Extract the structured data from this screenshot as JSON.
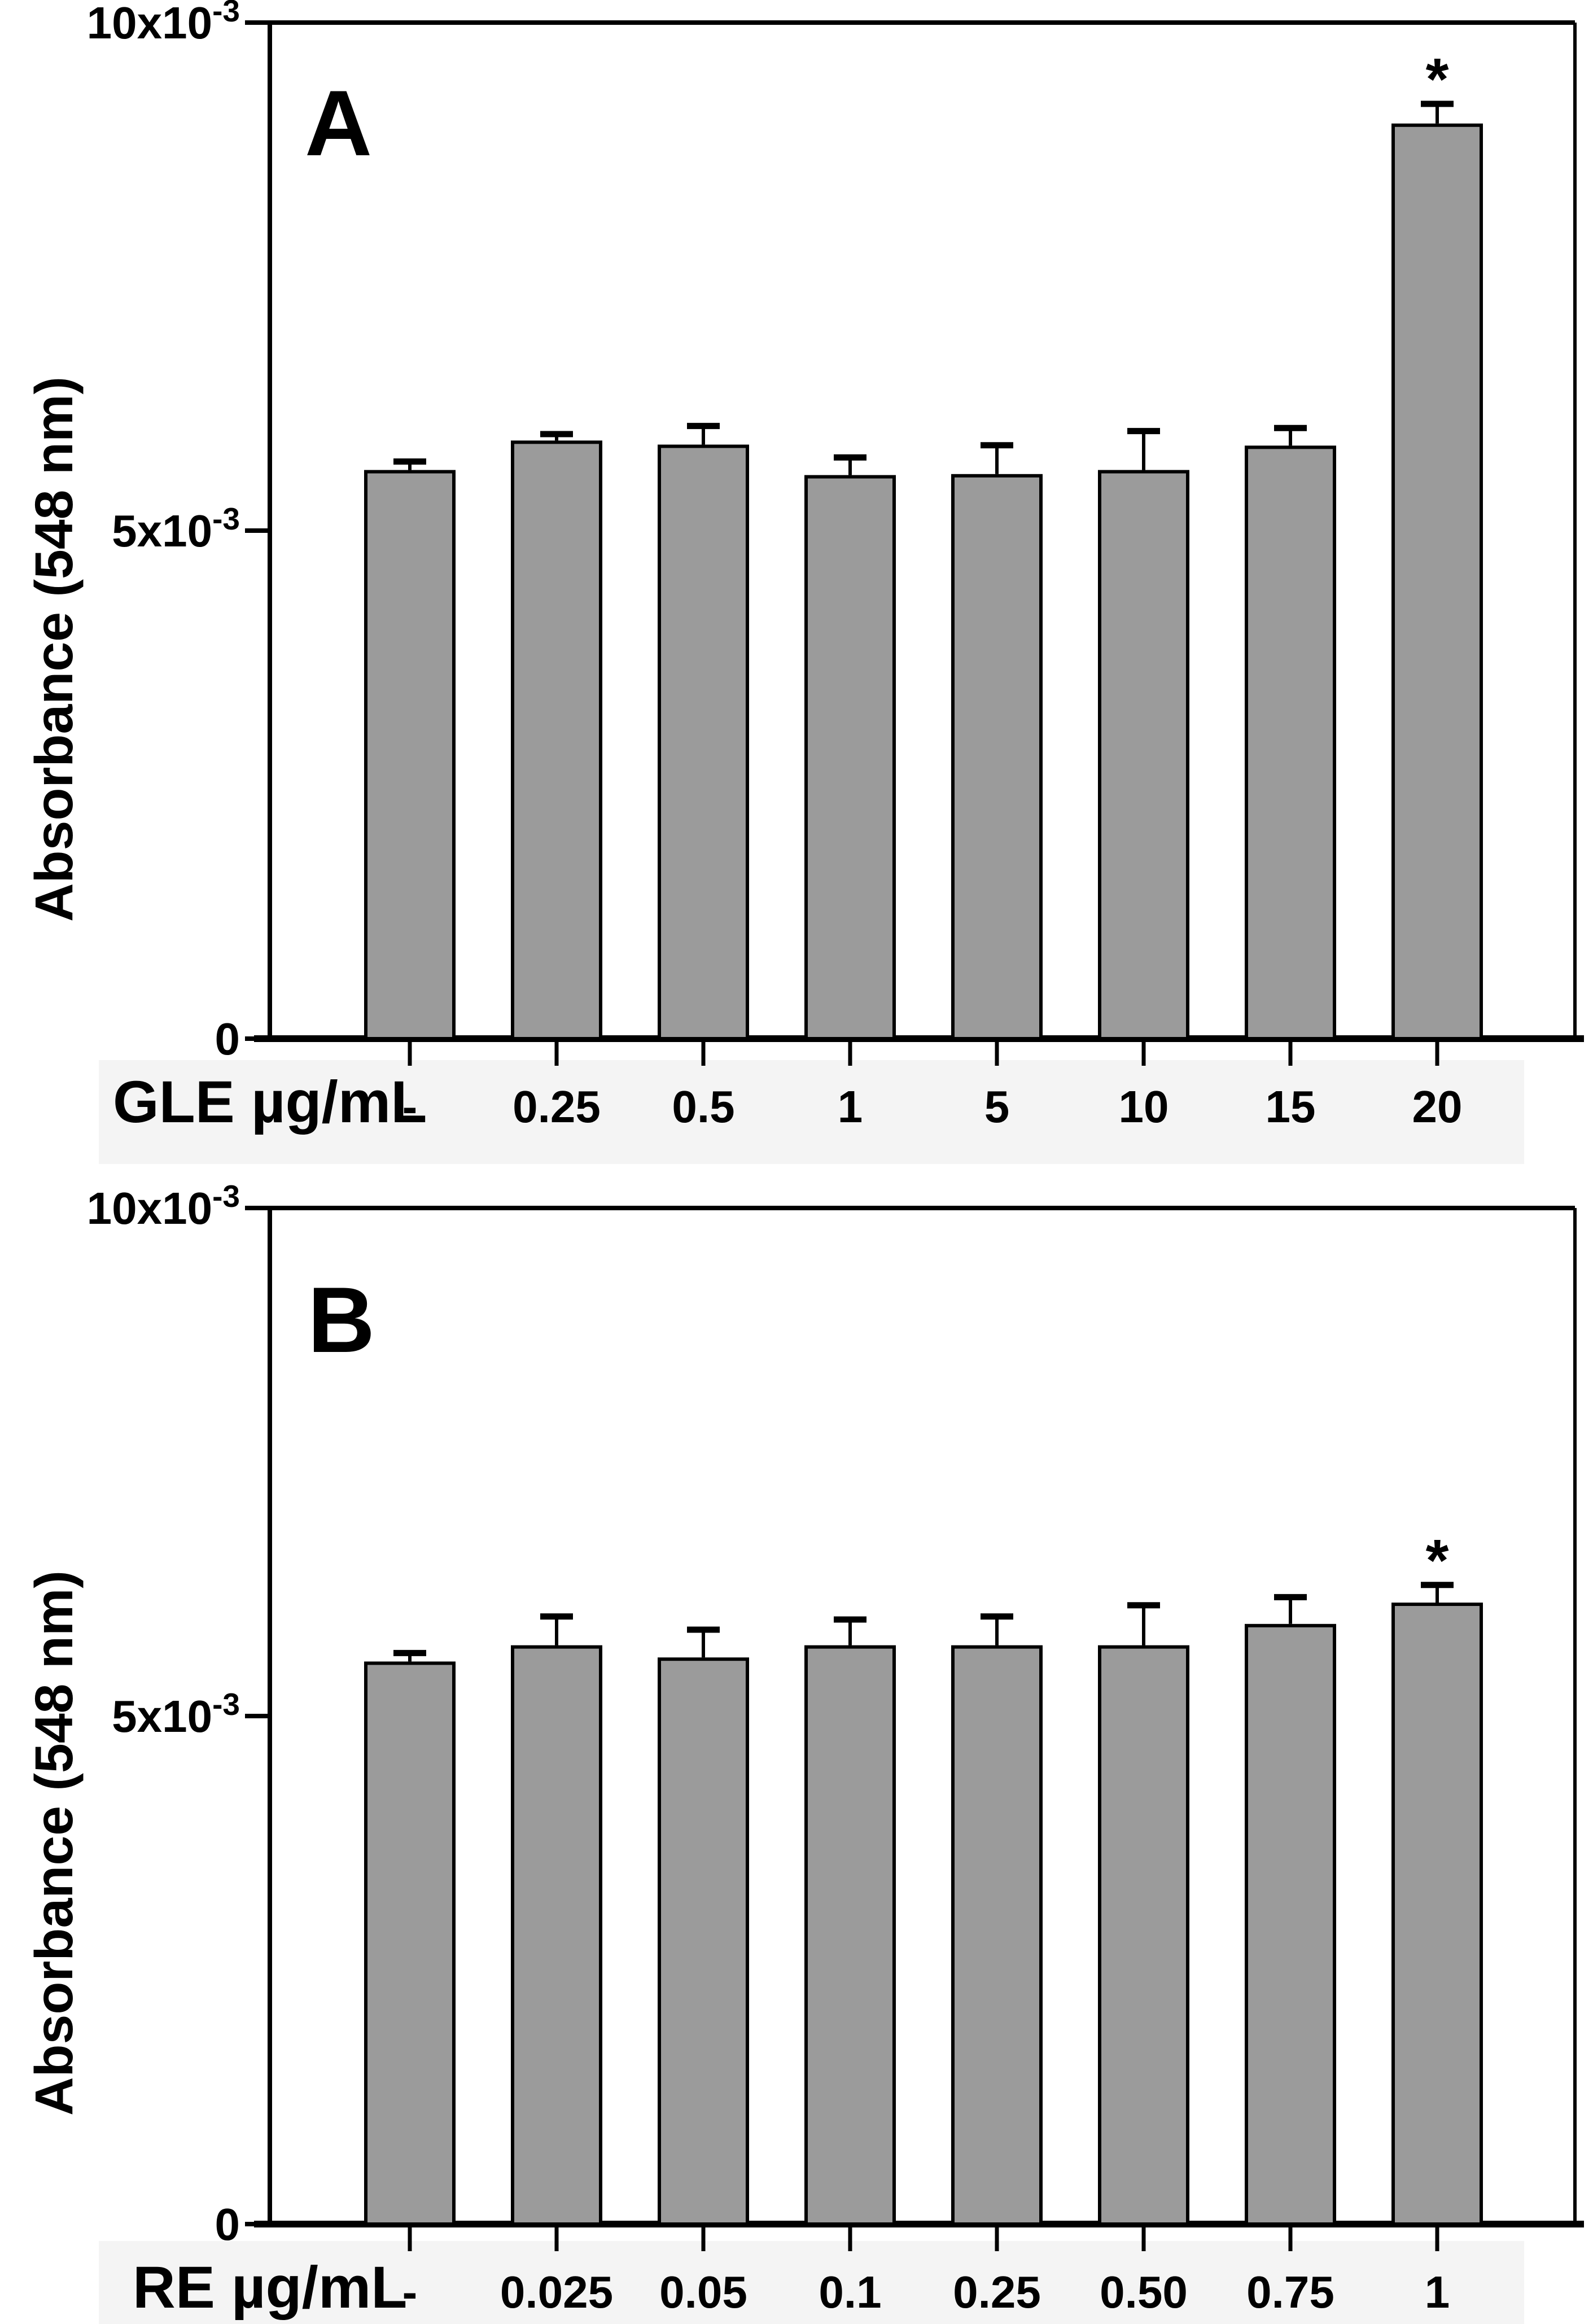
{
  "figure": {
    "background": "#ffffff",
    "bar_fill": "#9b9b9b",
    "bar_stroke": "#000000",
    "band_color": "#f4f4f4",
    "sig_symbol": "*"
  },
  "chart_data": [
    {
      "type": "bar",
      "panel_label": "A",
      "title": "",
      "ylabel": "Absorbance (548 nm)",
      "xlabel": "GLE µg/mL",
      "categories": [
        "-",
        "0.25",
        "0.5",
        "1",
        "5",
        "10",
        "15",
        "20"
      ],
      "values_e3": [
        5.58,
        5.87,
        5.83,
        5.53,
        5.54,
        5.58,
        5.82,
        8.99
      ],
      "errors_e3": [
        0.1,
        0.08,
        0.2,
        0.19,
        0.3,
        0.4,
        0.19,
        0.21
      ],
      "significance": [
        "",
        "",
        "",
        "",
        "",
        "",
        "",
        "*"
      ],
      "y_unit": "absorbance, values are x10^-3",
      "ylim_e3": [
        0,
        10
      ],
      "grid": false,
      "error_bars": "upper",
      "legend": "none",
      "yticks": [
        {
          "value_e3": 0,
          "label": "0",
          "exp": ""
        },
        {
          "value_e3": 5,
          "label": "5x10",
          "exp": "-3"
        },
        {
          "value_e3": 10,
          "label": "10x10",
          "exp": "-3"
        }
      ]
    },
    {
      "type": "bar",
      "panel_label": "B",
      "title": "",
      "ylabel": "Absorbance (548 nm)",
      "xlabel": "RE µg/mL",
      "categories": [
        "-",
        "0.025",
        "0.05",
        "0.1",
        "0.25",
        "0.50",
        "0.75",
        "1"
      ],
      "values_e3": [
        5.52,
        5.68,
        5.56,
        5.68,
        5.68,
        5.68,
        5.89,
        6.1
      ],
      "errors_e3": [
        0.1,
        0.3,
        0.29,
        0.27,
        0.3,
        0.41,
        0.28,
        0.19
      ],
      "significance": [
        "",
        "",
        "",
        "",
        "",
        "",
        "",
        "*"
      ],
      "y_unit": "absorbance, values are x10^-3",
      "ylim_e3": [
        0,
        10
      ],
      "grid": false,
      "error_bars": "upper",
      "legend": "none",
      "yticks": [
        {
          "value_e3": 0,
          "label": "0",
          "exp": ""
        },
        {
          "value_e3": 5,
          "label": "5x10",
          "exp": "-3"
        },
        {
          "value_e3": 10,
          "label": "10x10",
          "exp": "-3"
        }
      ]
    }
  ]
}
